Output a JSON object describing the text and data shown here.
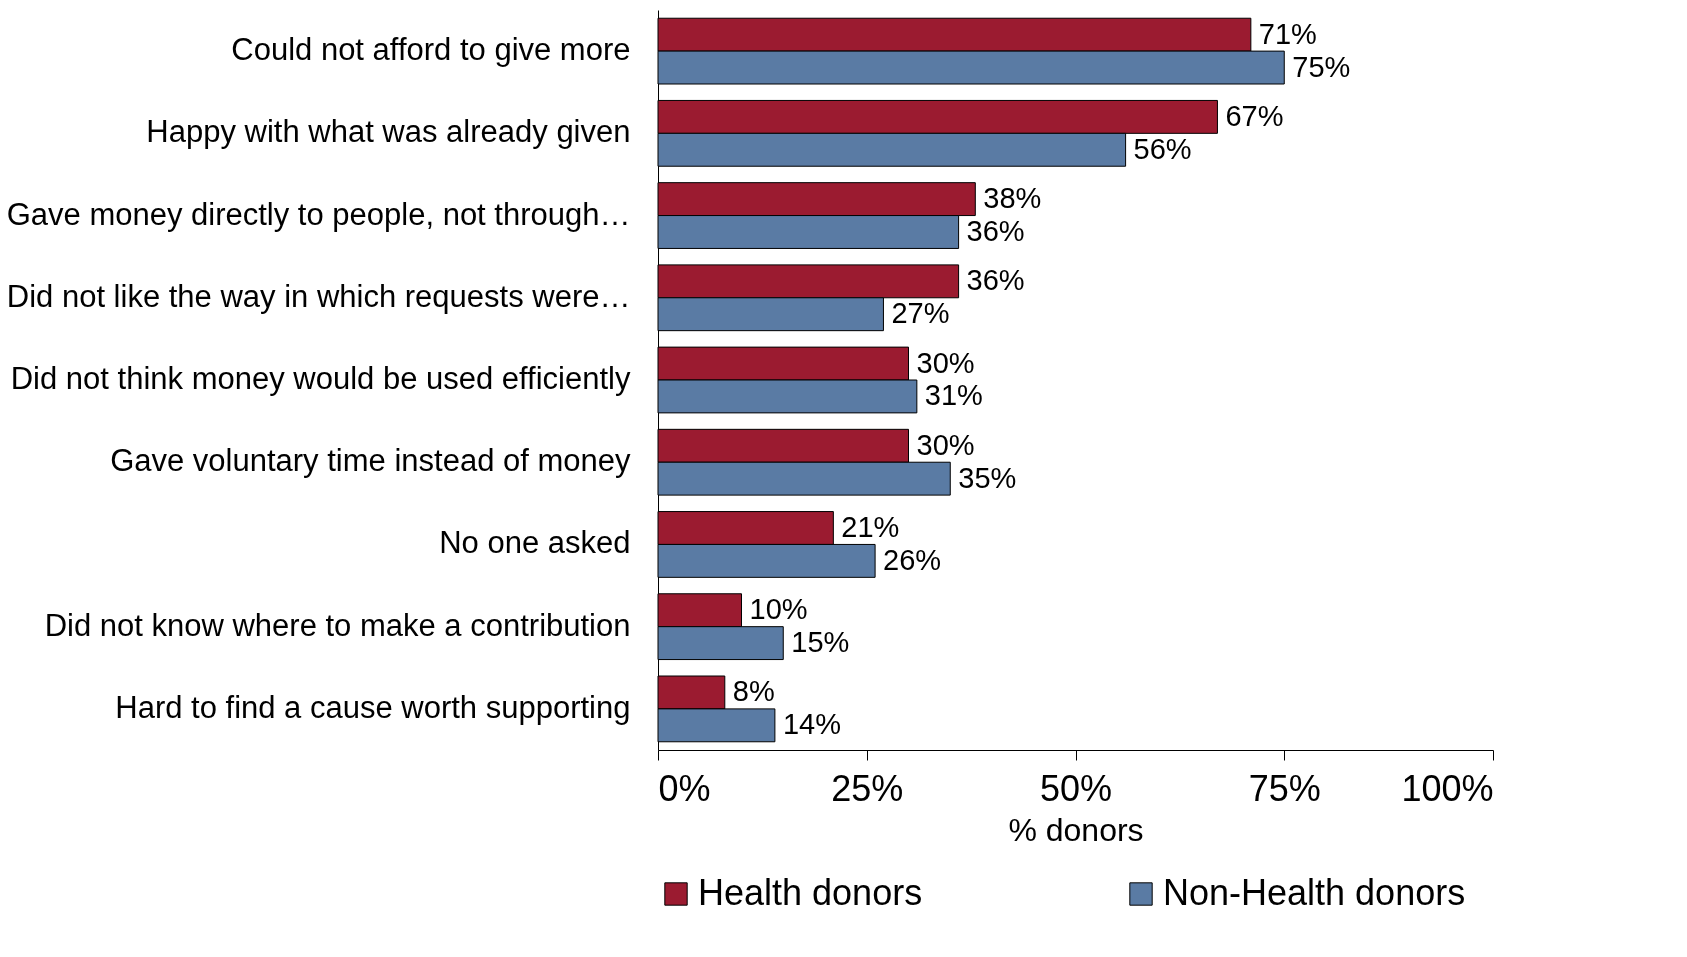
{
  "chart_data": {
    "type": "bar",
    "orientation": "horizontal",
    "xlabel": "% donors",
    "categories": [
      "Could not afford to give more",
      "Happy with what was already given",
      "Gave money directly to people, not through…",
      "Did not like the way in which requests were…",
      "Did not think money would be used efficiently",
      "Gave voluntary time instead of money",
      "No one asked",
      "Did not know where to make a contribution",
      "Hard to find a cause worth supporting"
    ],
    "series": [
      {
        "name": "Health donors",
        "color": "#9b1b30",
        "values": [
          71,
          67,
          38,
          36,
          30,
          30,
          21,
          10,
          8
        ],
        "value_labels": [
          "71%",
          "67%",
          "38%",
          "36%",
          "30%",
          "30%",
          "21%",
          "10%",
          "8%"
        ]
      },
      {
        "name": "Non-Health donors",
        "color": "#5a7ba4",
        "values": [
          75,
          56,
          36,
          27,
          31,
          35,
          26,
          15,
          14
        ],
        "value_labels": [
          "75%",
          "56%",
          "36%",
          "27%",
          "31%",
          "35%",
          "26%",
          "15%",
          "14%"
        ]
      }
    ],
    "xlim": [
      0,
      100
    ],
    "xticks": [
      {
        "value": 0,
        "label": "0%"
      },
      {
        "value": 25,
        "label": "25%"
      },
      {
        "value": 50,
        "label": "50%"
      },
      {
        "value": 75,
        "label": "75%"
      },
      {
        "value": 100,
        "label": "100%"
      }
    ],
    "grid": false,
    "legend": "bottom"
  }
}
